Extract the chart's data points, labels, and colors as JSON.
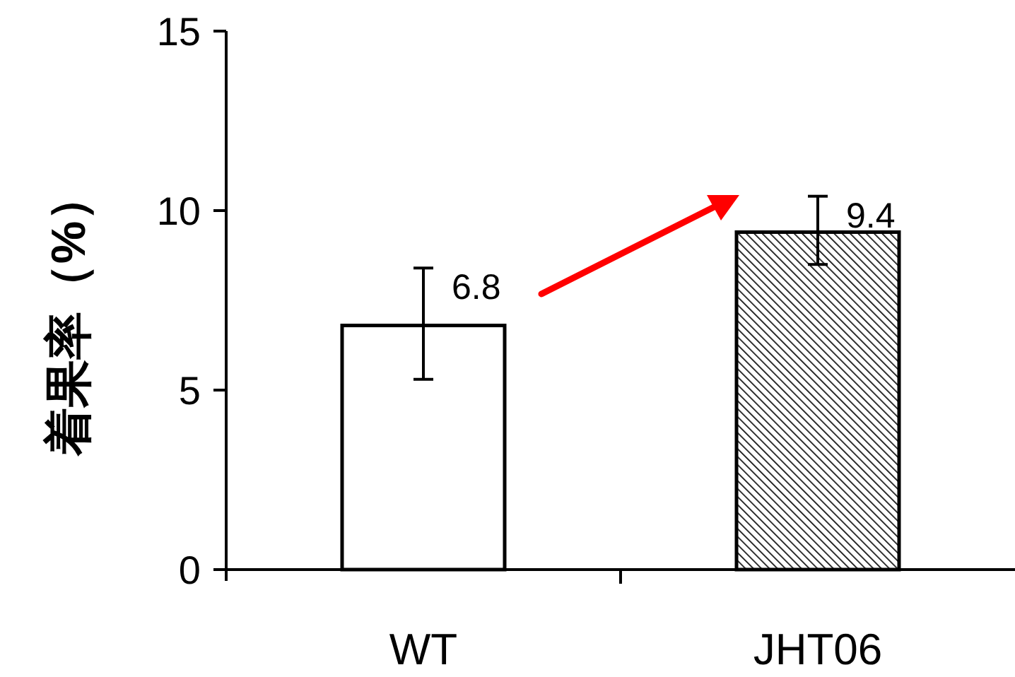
{
  "chart_data": {
    "type": "bar",
    "ylabel": "着果率（%）",
    "categories": [
      "WT",
      "JHT06"
    ],
    "values": [
      6.8,
      9.4
    ],
    "colors": [
      "#ffffff",
      "#000000"
    ],
    "errors": [
      [
        5.3,
        8.4
      ],
      [
        8.5,
        10.4
      ]
    ],
    "data_labels": true,
    "ylim": [
      0,
      15
    ],
    "yticks": [
      0,
      5,
      10,
      15
    ]
  }
}
